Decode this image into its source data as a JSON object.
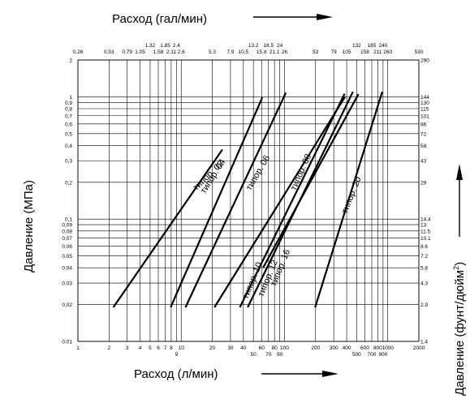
{
  "chart_data": {
    "type": "line",
    "title": "",
    "xlabel": "Расход (л/мин)",
    "x2label": "Расход (гал/мин)",
    "ylabel": "Давление (МПа)",
    "y2label": "Давление (фунт/дюйм",
    "y2label_sup": "2",
    "y2label_close": ")",
    "xscale": "log",
    "yscale": "log",
    "xlim": [
      1,
      2000
    ],
    "ylim": [
      0.01,
      2
    ],
    "grid": true,
    "x_ticks": [
      {
        "v": 1,
        "t": "1",
        "row": 0
      },
      {
        "v": 2,
        "t": "2",
        "row": 0
      },
      {
        "v": 3,
        "t": "3",
        "row": 0
      },
      {
        "v": 4,
        "t": "4",
        "row": 0
      },
      {
        "v": 5,
        "t": "5",
        "row": 0
      },
      {
        "v": 6,
        "t": "6",
        "row": 0
      },
      {
        "v": 7,
        "t": "7",
        "row": 0
      },
      {
        "v": 8,
        "t": "8",
        "row": 0
      },
      {
        "v": 9,
        "t": "9",
        "row": 1
      },
      {
        "v": 10,
        "t": "10",
        "row": 0
      },
      {
        "v": 20,
        "t": "20",
        "row": 0
      },
      {
        "v": 30,
        "t": "30",
        "row": 0
      },
      {
        "v": 40,
        "t": "40",
        "row": 0
      },
      {
        "v": 50,
        "t": "50",
        "row": 1
      },
      {
        "v": 60,
        "t": "60",
        "row": 0
      },
      {
        "v": 70,
        "t": "70",
        "row": 1
      },
      {
        "v": 80,
        "t": "80",
        "row": 0
      },
      {
        "v": 90,
        "t": "90",
        "row": 1
      },
      {
        "v": 100,
        "t": "100",
        "row": 0
      },
      {
        "v": 200,
        "t": "200",
        "row": 0
      },
      {
        "v": 300,
        "t": "300",
        "row": 0
      },
      {
        "v": 400,
        "t": "400",
        "row": 0
      },
      {
        "v": 500,
        "t": "500",
        "row": 1
      },
      {
        "v": 600,
        "t": "600",
        "row": 0
      },
      {
        "v": 700,
        "t": "700",
        "row": 1
      },
      {
        "v": 800,
        "t": "800",
        "row": 0
      },
      {
        "v": 900,
        "t": "900",
        "row": 1
      },
      {
        "v": 1000,
        "t": "1000",
        "row": 0
      },
      {
        "v": 2000,
        "t": "2000",
        "row": 0
      }
    ],
    "x2_ticks": [
      {
        "v": 1,
        "t": "0.26",
        "row": 1
      },
      {
        "v": 2,
        "t": "0.53",
        "row": 1
      },
      {
        "v": 3,
        "t": "0.79",
        "row": 1
      },
      {
        "v": 4,
        "t": "1.05",
        "row": 1
      },
      {
        "v": 5,
        "t": "1.32",
        "row": 0
      },
      {
        "v": 6,
        "t": "1.58",
        "row": 1
      },
      {
        "v": 7,
        "t": "1.85",
        "row": 0
      },
      {
        "v": 8,
        "t": "2.11",
        "row": 1
      },
      {
        "v": 9,
        "t": "2.4",
        "row": 0
      },
      {
        "v": 10,
        "t": "2.6",
        "row": 1
      },
      {
        "v": 20,
        "t": "5.3",
        "row": 1
      },
      {
        "v": 30,
        "t": "7.9",
        "row": 1
      },
      {
        "v": 40,
        "t": "10.5",
        "row": 1
      },
      {
        "v": 50,
        "t": "13.2",
        "row": 0
      },
      {
        "v": 60,
        "t": "15.8",
        "row": 1
      },
      {
        "v": 70,
        "t": "18.5",
        "row": 0
      },
      {
        "v": 80,
        "t": "21.1",
        "row": 1
      },
      {
        "v": 90,
        "t": "24",
        "row": 0
      },
      {
        "v": 100,
        "t": "26",
        "row": 1
      },
      {
        "v": 200,
        "t": "53",
        "row": 1
      },
      {
        "v": 300,
        "t": "79",
        "row": 1
      },
      {
        "v": 400,
        "t": "105",
        "row": 1
      },
      {
        "v": 500,
        "t": "132",
        "row": 0
      },
      {
        "v": 600,
        "t": "158",
        "row": 1
      },
      {
        "v": 700,
        "t": "185",
        "row": 0
      },
      {
        "v": 800,
        "t": "211",
        "row": 1
      },
      {
        "v": 900,
        "t": "240",
        "row": 0
      },
      {
        "v": 1000,
        "t": "260",
        "row": 1
      },
      {
        "v": 2000,
        "t": "530",
        "row": 1
      }
    ],
    "y_ticks": [
      {
        "v": 2,
        "t": "2",
        "r": "290"
      },
      {
        "v": 1,
        "t": "1",
        "r": "144"
      },
      {
        "v": 0.9,
        "t": "0,9",
        "r": "130"
      },
      {
        "v": 0.8,
        "t": "0,8",
        "r": "115"
      },
      {
        "v": 0.7,
        "t": "0,7",
        "r": "101"
      },
      {
        "v": 0.6,
        "t": "0,6",
        "r": "86"
      },
      {
        "v": 0.5,
        "t": "0,5",
        "r": "72"
      },
      {
        "v": 0.4,
        "t": "0,4",
        "r": "58"
      },
      {
        "v": 0.3,
        "t": "0,3",
        "r": "43"
      },
      {
        "v": 0.2,
        "t": "0,2",
        "r": "29"
      },
      {
        "v": 0.1,
        "t": "0,1",
        "r": "14.4"
      },
      {
        "v": 0.09,
        "t": "0,09",
        "r": "13"
      },
      {
        "v": 0.08,
        "t": "0,08",
        "r": "11.5"
      },
      {
        "v": 0.07,
        "t": "0,07",
        "r": "10.1"
      },
      {
        "v": 0.06,
        "t": "0,06",
        "r": "8.6"
      },
      {
        "v": 0.05,
        "t": "0,05",
        "r": "7.2"
      },
      {
        "v": 0.04,
        "t": "0,04",
        "r": "5.8"
      },
      {
        "v": 0.03,
        "t": "0,03",
        "r": "4.3"
      },
      {
        "v": 0.02,
        "t": "0,02",
        "r": "2.9"
      },
      {
        "v": 0.01,
        "t": "0,01",
        "r": "1.4"
      }
    ],
    "series": [
      {
        "name": "типор. 02",
        "x": [
          2.2,
          25
        ],
        "y": [
          0.019,
          0.37
        ],
        "label_at": [
          14,
          0.17
        ],
        "label_angle": -44
      },
      {
        "name": "типор. 04",
        "x": [
          7.9,
          61
        ],
        "y": [
          0.019,
          0.99
        ],
        "label_at": [
          17,
          0.16
        ],
        "label_angle": -58
      },
      {
        "name": "типор. 06",
        "x": [
          11,
          103
        ],
        "y": [
          0.019,
          1.08
        ],
        "label_at": [
          47,
          0.17
        ],
        "label_angle": -60
      },
      {
        "name": "типор. 08",
        "x": [
          21,
          385
        ],
        "y": [
          0.019,
          1.0
        ],
        "label_at": [
          128,
          0.17
        ],
        "label_angle": -66
      },
      {
        "name": "типор. 10",
        "x": [
          37,
          382
        ],
        "y": [
          0.019,
          1.06
        ],
        "label_at": [
          44,
          0.022
        ],
        "label_angle": -68
      },
      {
        "name": "типор. 12",
        "x": [
          44,
          460
        ],
        "y": [
          0.019,
          1.1
        ],
        "label_at": [
          62,
          0.023
        ],
        "label_angle": -68
      },
      {
        "name": "типор. 16",
        "x": [
          62,
          520
        ],
        "y": [
          0.04,
          1.05
        ],
        "label_at": [
          82,
          0.028
        ],
        "label_angle": -68
      },
      {
        "name": "типор. 20",
        "x": [
          198,
          885
        ],
        "y": [
          0.019,
          1.1
        ],
        "label_at": [
          400,
          0.11
        ],
        "label_angle": -68
      }
    ]
  }
}
